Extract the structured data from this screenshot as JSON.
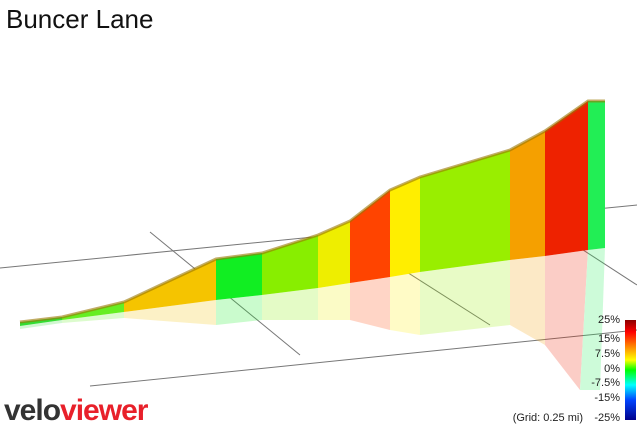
{
  "header": {
    "title": "Buncer Lane"
  },
  "legend": {
    "labels": [
      "25%",
      "15%",
      "7.5%",
      "0%",
      "-7.5%",
      "-15%",
      "-25%"
    ],
    "grid_note": "(Grid: 0.25 mi)"
  },
  "logo": {
    "part1": "velo",
    "part2": "viewer"
  }
}
